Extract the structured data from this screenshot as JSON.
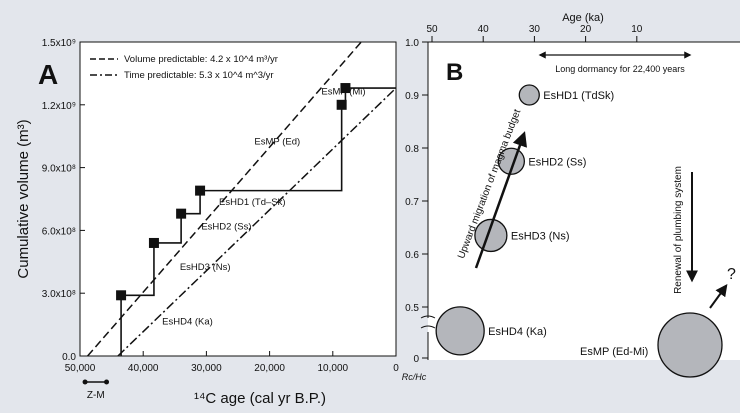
{
  "chart_data": [
    {
      "panel": "A",
      "type": "line",
      "ylabel": "Cumulative volume (m³)",
      "xlabel": "¹⁴C age (cal yr B.P.)",
      "xlim": [
        50000,
        0
      ],
      "ylim": [
        0,
        1500000000.0
      ],
      "x_ticks": [
        {
          "v": 50000,
          "label": "50,000"
        },
        {
          "v": 40000,
          "label": "40,000"
        },
        {
          "v": 30000,
          "label": "30,000"
        },
        {
          "v": 20000,
          "label": "20,000"
        },
        {
          "v": 10000,
          "label": "10,000"
        },
        {
          "v": 0,
          "label": "0"
        }
      ],
      "y_ticks": [
        {
          "v": 0,
          "label": "0.0"
        },
        {
          "v": 300000000.0,
          "label": "3.0x10⁸"
        },
        {
          "v": 600000000.0,
          "label": "6.0x10⁸"
        },
        {
          "v": 900000000.0,
          "label": "9.0x10⁸"
        },
        {
          "v": 1200000000.0,
          "label": "1.2x10⁹"
        },
        {
          "v": 1500000000.0,
          "label": "1.5x10⁹"
        }
      ],
      "legend": [
        {
          "style": "dashed",
          "label": "Volume predictable: 4.2 x 10^4 m³/yr"
        },
        {
          "style": "dashdot",
          "label": "Time predictable: 5.3 x 10^4 m^3/yr"
        }
      ],
      "eruptions": [
        {
          "x": 43500,
          "y": 290000000.0
        },
        {
          "x": 38300,
          "y": 540000000.0
        },
        {
          "x": 34000,
          "y": 680000000.0
        },
        {
          "x": 31000,
          "y": 790000000.0
        },
        {
          "x": 8600,
          "y": 1200000000.0
        },
        {
          "x": 8000,
          "y": 1280000000.0
        }
      ],
      "labels": [
        {
          "text": "EsMP (Mi)",
          "x": 11800,
          "y": 1250000000.0
        },
        {
          "text": "EsMP (Ed)",
          "x": 22400,
          "y": 1010000000.0
        },
        {
          "text": "EsHD1 (Td–Sk)",
          "x": 28000,
          "y": 722000000.0
        },
        {
          "text": "EsHD2 (Ss)",
          "x": 30800,
          "y": 605000000.0
        },
        {
          "text": "EsHD3 (Ns)",
          "x": 34200,
          "y": 410000000.0
        },
        {
          "text": "EsHD4 (Ka)",
          "x": 37000,
          "y": 150000000.0
        }
      ],
      "volume_line": [
        [
          48800,
          0
        ],
        [
          5500,
          1500000000.0
        ]
      ],
      "time_line": [
        [
          44000,
          0
        ],
        [
          0,
          1280000000.0
        ]
      ],
      "scale_bar": {
        "x": [
          49200,
          45800
        ],
        "label": "Z-M"
      }
    },
    {
      "panel": "B",
      "type": "scatter",
      "xlabel": "Age (ka)",
      "ylabel": "Rc/Hc",
      "xlim": [
        50,
        0
      ],
      "ylim": [
        0,
        1.0
      ],
      "x_ticks": [
        50,
        40,
        30,
        20,
        10
      ],
      "y_ticks": [
        {
          "v": 0.5,
          "label": "0.5"
        },
        {
          "v": 0.6,
          "label": "0.6"
        },
        {
          "v": 0.7,
          "label": "0.7"
        },
        {
          "v": 0.8,
          "label": "0.8"
        },
        {
          "v": 0.9,
          "label": "0.9"
        },
        {
          "v": 1.0,
          "label": "1.0"
        }
      ],
      "points": [
        {
          "name": "EsHD1 (TdSk)",
          "age": 31,
          "ratio": 0.9
        },
        {
          "name": "EsHD2 (Ss)",
          "age": 34.5,
          "ratio": 0.775
        },
        {
          "name": "EsHD3 (Ns)",
          "age": 38.5,
          "ratio": 0.635
        },
        {
          "name": "EsHD4 (Ka)",
          "age": 44.5,
          "ratio": 0.455
        },
        {
          "name": "EsMP (Ed-Mi)",
          "age": 8,
          "ratio": 0.37
        }
      ],
      "annotations": {
        "dormancy": "Long dormancy for 22,400 years",
        "upward": "Upward migration of magma budget",
        "renewal": "Renewal of plumbing system",
        "question": "?"
      }
    }
  ]
}
